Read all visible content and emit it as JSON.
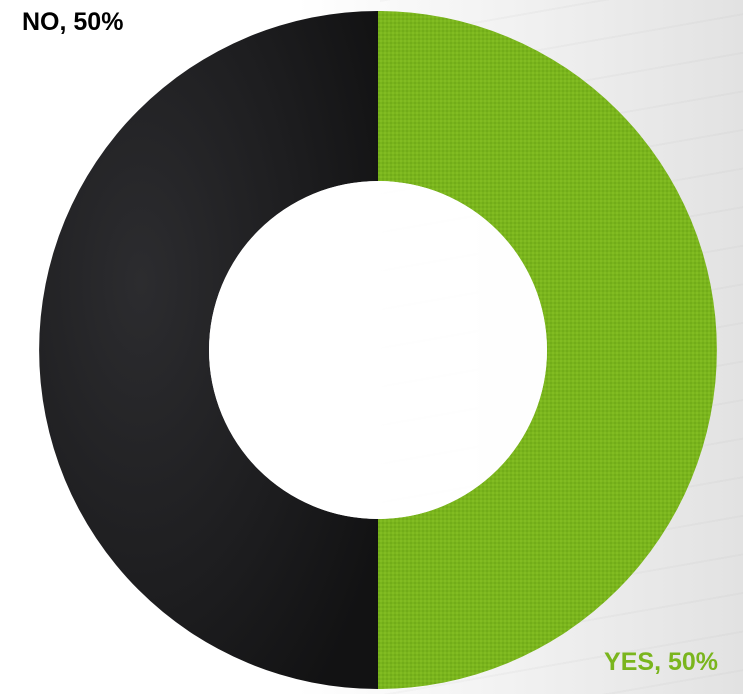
{
  "chart_data": {
    "type": "pie",
    "donut": true,
    "slices": [
      {
        "label": "YES",
        "value": 50,
        "display": "YES, 50%",
        "color": "#7ab51d"
      },
      {
        "label": "NO",
        "value": 50,
        "display": "NO, 50%",
        "color": "#1e1e20"
      }
    ],
    "legend": "none"
  }
}
